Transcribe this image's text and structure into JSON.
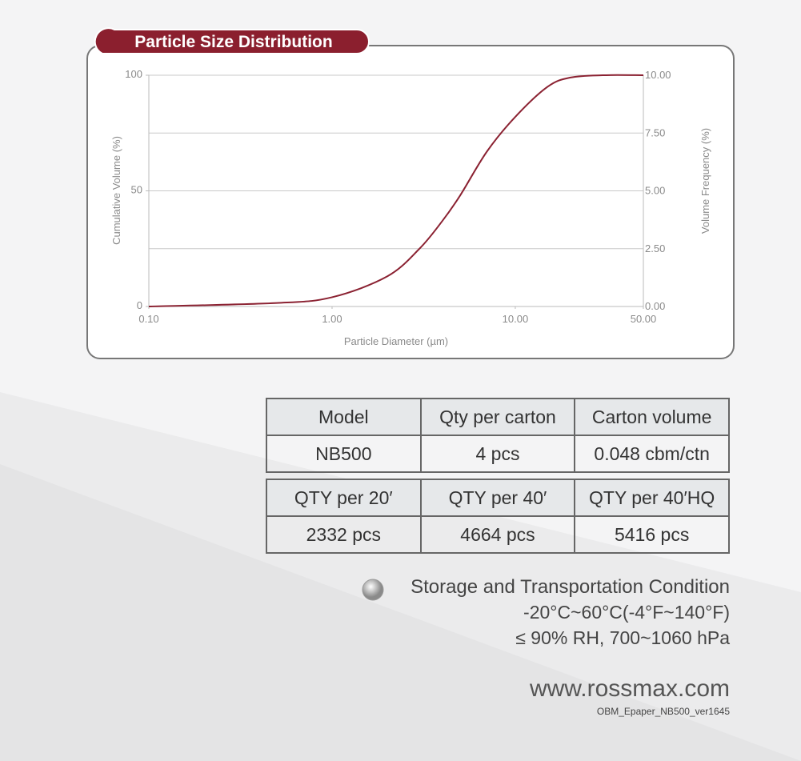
{
  "chart_data": {
    "type": "line",
    "title": "Particle  Size Distribution",
    "x_label": "Particle Diameter (µm)",
    "y_label": "Cumulative Volume (%)",
    "y2_label": "Volume Frequency (%)",
    "x_log": true,
    "xlim": [
      0.1,
      50
    ],
    "xticks": [
      {
        "value": 0.1,
        "label": "0.10"
      },
      {
        "value": 1,
        "label": "1.00"
      },
      {
        "value": 10,
        "label": "10.00"
      },
      {
        "value": 50,
        "label": "50.00"
      }
    ],
    "ylim": [
      0,
      100
    ],
    "yticks": [
      0,
      50,
      100
    ],
    "y2lim": [
      0,
      10
    ],
    "y2ticks": [
      {
        "value": 0,
        "label": "0.00"
      },
      {
        "value": 2.5,
        "label": "2.50"
      },
      {
        "value": 5,
        "label": "5.00"
      },
      {
        "value": 7.5,
        "label": "7.50"
      },
      {
        "value": 10,
        "label": "10.00"
      }
    ],
    "grid": true,
    "series": [
      {
        "color": "#8b2232",
        "x": [
          0.1,
          0.5,
          1,
          2,
          3,
          4,
          5,
          7,
          10,
          15,
          20,
          30,
          50
        ],
        "values": [
          0,
          1.5,
          4,
          13,
          25,
          37,
          48,
          67,
          82,
          95,
          99,
          100,
          100
        ]
      }
    ]
  },
  "tables": [
    {
      "rows": [
        [
          "Model",
          "Qty per carton",
          "Carton volume"
        ],
        [
          "NB500",
          "4 pcs",
          "0.048 cbm/ctn"
        ]
      ]
    },
    {
      "rows": [
        [
          "QTY per 20′",
          "QTY per 40′",
          "QTY per 40′HQ"
        ],
        [
          "2332 pcs",
          "4664 pcs",
          "5416 pcs"
        ]
      ]
    }
  ],
  "storage": {
    "title": "Storage and Transportation Condition",
    "lines": [
      "-20°C~60°C(-4°F~140°F)",
      "≤ 90% RH, 700~1060 hPa"
    ]
  },
  "footer": {
    "website": "www.rossmax.com",
    "code": "OBM_Epaper_NB500_ver1645"
  }
}
